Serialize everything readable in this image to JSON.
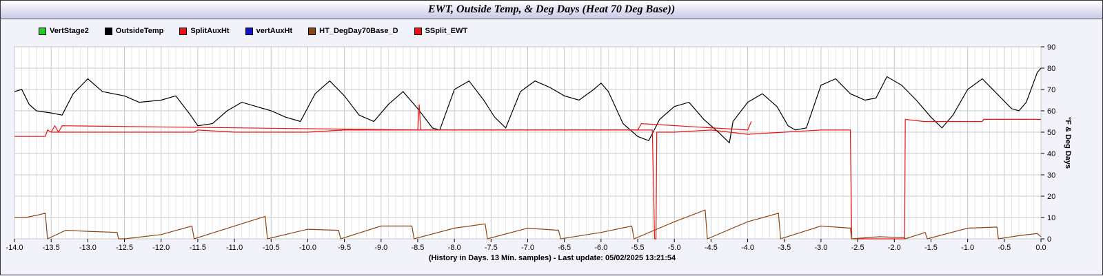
{
  "title": "EWT, Outside Temp, &  Deg Days (Heat 70 Deg Base))",
  "legend": [
    {
      "label": "VertStage2",
      "color": "#22cc22"
    },
    {
      "label": "OutsideTemp",
      "color": "#000000"
    },
    {
      "label": "SplitAuxHt",
      "color": "#ee1111"
    },
    {
      "label": "vertAuxHt",
      "color": "#1111cc"
    },
    {
      "label": "HT_DegDay70Base_D",
      "color": "#8b4513"
    },
    {
      "label": "SSplit_EWT",
      "color": "#ee1111"
    }
  ],
  "chart_data": {
    "type": "line",
    "title": "EWT, Outside Temp, &  Deg Days (Heat 70 Deg Base))",
    "xlabel": "(History in Days. 13 Min. samples) - Last update: 05/02/2025 13:21:54",
    "ylabel": "°F & Deg Days",
    "xlim": [
      -14.0,
      0.0
    ],
    "ylim": [
      0,
      90
    ],
    "x_ticks": [
      "-14.0",
      "-13.5",
      "-13.0",
      "-12.5",
      "-12.0",
      "-11.5",
      "-11.0",
      "-10.5",
      "-10.0",
      "-9.5",
      "-9.0",
      "-8.5",
      "-8.0",
      "-7.5",
      "-7.0",
      "-6.5",
      "-6.0",
      "-5.5",
      "-5.0",
      "-4.5",
      "-4.0",
      "-3.5",
      "-3.0",
      "-2.5",
      "-2.0",
      "-1.5",
      "-1.0",
      "-0.5",
      "0.0"
    ],
    "y_ticks": [
      "0",
      "10",
      "20",
      "30",
      "40",
      "50",
      "60",
      "70",
      "80",
      "90"
    ],
    "grid": true,
    "legend_position": "top-left",
    "series": [
      {
        "name": "OutsideTemp",
        "color": "#000000",
        "x": [
          -14.0,
          -13.9,
          -13.8,
          -13.7,
          -13.5,
          -13.35,
          -13.2,
          -13.0,
          -12.8,
          -12.5,
          -12.3,
          -12.0,
          -11.8,
          -11.6,
          -11.5,
          -11.3,
          -11.1,
          -10.9,
          -10.7,
          -10.5,
          -10.3,
          -10.1,
          -9.9,
          -9.7,
          -9.5,
          -9.3,
          -9.1,
          -8.9,
          -8.7,
          -8.5,
          -8.3,
          -8.2,
          -8.0,
          -7.8,
          -7.6,
          -7.45,
          -7.3,
          -7.1,
          -6.9,
          -6.7,
          -6.5,
          -6.3,
          -6.1,
          -6.0,
          -5.9,
          -5.7,
          -5.5,
          -5.35,
          -5.2,
          -5.0,
          -4.8,
          -4.6,
          -4.4,
          -4.25,
          -4.2,
          -4.0,
          -3.8,
          -3.6,
          -3.45,
          -3.35,
          -3.2,
          -3.0,
          -2.8,
          -2.6,
          -2.4,
          -2.25,
          -2.1,
          -1.9,
          -1.7,
          -1.5,
          -1.35,
          -1.2,
          -1.0,
          -0.8,
          -0.6,
          -0.4,
          -0.3,
          -0.2,
          -0.05,
          0.0
        ],
        "values": [
          69,
          70,
          63,
          60,
          59,
          58,
          68,
          75,
          69,
          67,
          64,
          65,
          67,
          58,
          53,
          54,
          60,
          64,
          62,
          60,
          57,
          55,
          68,
          74,
          67,
          58,
          55,
          63,
          69,
          61,
          52,
          51,
          70,
          74,
          65,
          57,
          52,
          69,
          74,
          71,
          67,
          65,
          70,
          73,
          69,
          54,
          48,
          46,
          56,
          62,
          64,
          56,
          50,
          45,
          55,
          64,
          68,
          62,
          53,
          51,
          52,
          72,
          75,
          68,
          65,
          66,
          76,
          72,
          65,
          57,
          52,
          58,
          70,
          75,
          68,
          61,
          60,
          64,
          78,
          80
        ],
        "note": "daily-cycle outdoor temperature trace"
      },
      {
        "name": "SSplit_EWT",
        "color": "#ee1111",
        "x": [
          -14.0,
          -13.58,
          -13.55,
          -13.5,
          -13.0,
          -12.0,
          -11.55,
          -11.5,
          -11.0,
          -10.5,
          -10.0,
          -9.5,
          -9.0,
          -8.5,
          -8.0,
          -7.5,
          -7.45,
          -7.0,
          -6.0,
          -5.5,
          -5.3,
          -5.27,
          -5.25,
          -5.24,
          -5.0,
          -4.5,
          -4.0,
          -3.5,
          -3.0,
          -2.6,
          -2.58,
          -2.56,
          -1.86,
          -1.85,
          -1.6,
          -0.8,
          -0.78,
          0.0
        ],
        "values": [
          48,
          48,
          51,
          50,
          50,
          50,
          50,
          51,
          50,
          50,
          50,
          51,
          51,
          51,
          51,
          51,
          51,
          51,
          51,
          51,
          51,
          0,
          0,
          50,
          50,
          51,
          49,
          50,
          51,
          51,
          0,
          0,
          0,
          56,
          55,
          55,
          56,
          56
        ],
        "note": "EWT step trace with dropouts to 0"
      },
      {
        "name": "HT_DegDay70Base_D",
        "color": "#8b4513",
        "x": [
          -14.0,
          -13.85,
          -13.7,
          -13.58,
          -13.55,
          -13.3,
          -13.0,
          -12.6,
          -12.58,
          -12.5,
          -12.0,
          -11.58,
          -11.55,
          -11.0,
          -10.58,
          -10.55,
          -10.0,
          -9.58,
          -9.55,
          -9.0,
          -8.58,
          -8.55,
          -8.0,
          -7.58,
          -7.55,
          -7.0,
          -6.58,
          -6.55,
          -6.0,
          -5.58,
          -5.55,
          -5.0,
          -4.58,
          -4.55,
          -4.0,
          -3.58,
          -3.55,
          -3.0,
          -2.6,
          -2.58,
          -2.2,
          -1.86,
          -1.85,
          -1.58,
          -1.55,
          -1.0,
          -0.6,
          -0.58,
          -0.3,
          -0.05,
          0.0
        ],
        "values": [
          10,
          10,
          11,
          12,
          0,
          4,
          3.5,
          3,
          0,
          0,
          2,
          6,
          0,
          6,
          10.5,
          0,
          4.5,
          4,
          0,
          6,
          6,
          0,
          5,
          7,
          0,
          5,
          4,
          0,
          3,
          6,
          0,
          8,
          13.5,
          0,
          8,
          12,
          0,
          6,
          5,
          0,
          1,
          0.5,
          0,
          3,
          0,
          5,
          5.5,
          0,
          1.5,
          2.5,
          1
        ],
        "note": "sawtooth daily accumulation"
      },
      {
        "name": "SplitAuxHt",
        "color": "#ee1111",
        "x": [
          -13.5,
          -13.45,
          -13.4,
          -13.35,
          -8.5,
          -8.48,
          -8.46,
          -5.5,
          -5.45,
          -4.0,
          -3.95
        ],
        "values": [
          50,
          53,
          50,
          53,
          51,
          63,
          51,
          51,
          54,
          51,
          55
        ],
        "note": "spikes above EWT trace"
      }
    ]
  }
}
